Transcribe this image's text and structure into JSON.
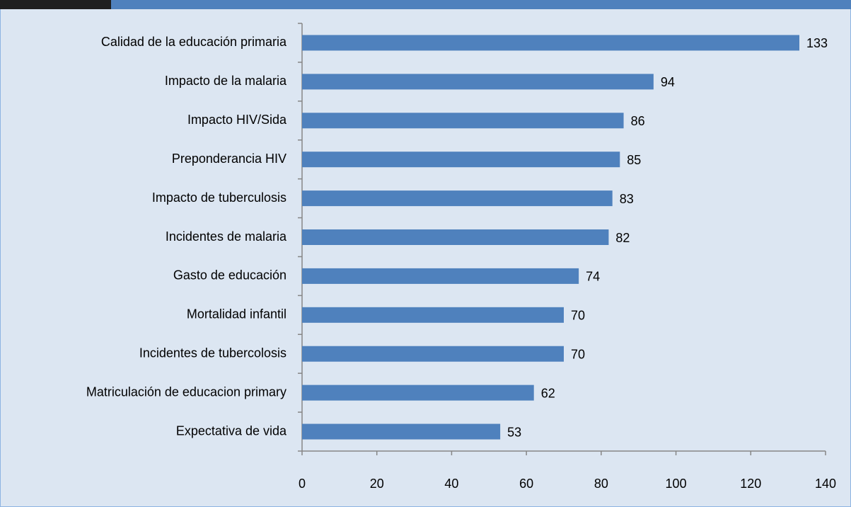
{
  "chart_data": {
    "type": "barh",
    "categories": [
      "Calidad de la educación primaria",
      "Impacto de la malaria",
      "Impacto HIV/Sida",
      "Preponderancia HIV",
      "Impacto de tuberculosis",
      "Incidentes de malaria",
      "Gasto de educación",
      "Mortalidad infantil",
      "Incidentes de tubercolosis",
      "Matriculación de educacion primary",
      "Expectativa de vida"
    ],
    "values": [
      133,
      94,
      86,
      85,
      83,
      82,
      74,
      70,
      70,
      62,
      53
    ],
    "color": "#4f81bd",
    "xlim": [
      0,
      140
    ],
    "xticks": [
      0,
      20,
      40,
      60,
      80,
      100,
      120,
      140
    ]
  }
}
